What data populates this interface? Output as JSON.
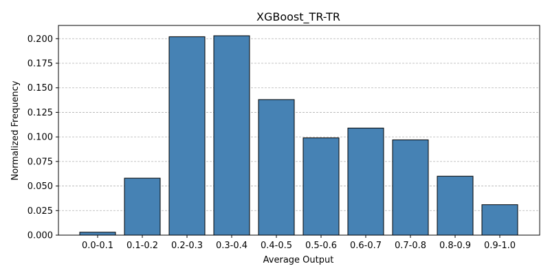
{
  "chart_data": {
    "type": "bar",
    "title": "XGBoost_TR-TR",
    "xlabel": "Average Output",
    "ylabel": "Normalized Frequency",
    "categories": [
      "0.0-0.1",
      "0.1-0.2",
      "0.2-0.3",
      "0.3-0.4",
      "0.4-0.5",
      "0.5-0.6",
      "0.6-0.7",
      "0.7-0.8",
      "0.8-0.9",
      "0.9-1.0"
    ],
    "values": [
      0.003,
      0.058,
      0.202,
      0.203,
      0.138,
      0.099,
      0.109,
      0.097,
      0.06,
      0.031
    ],
    "ylim": [
      0,
      0.2135
    ],
    "yticks": [
      0.0,
      0.025,
      0.05,
      0.075,
      0.1,
      0.125,
      0.15,
      0.175,
      0.2
    ],
    "ytick_labels": [
      "0.000",
      "0.025",
      "0.050",
      "0.075",
      "0.100",
      "0.125",
      "0.150",
      "0.175",
      "0.200"
    ],
    "grid": "y-dashed",
    "bar_color": "#4682b4",
    "edge_color": "#000000"
  }
}
